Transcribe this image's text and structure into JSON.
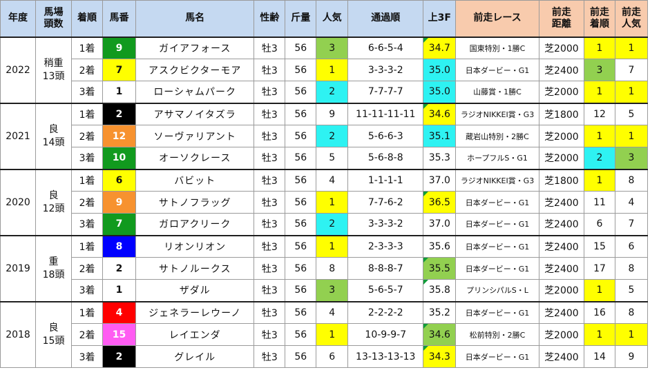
{
  "colors": {
    "header_bg": "#c5d9f1",
    "header_prev_bg": "#f8cbad",
    "highlight_yellow": "#ffff00",
    "highlight_cyan": "#2ef2f2",
    "highlight_green": "#92d050",
    "frame_white": "#ffffff",
    "frame_black": "#000000",
    "frame_red": "#ff0000",
    "frame_blue": "#0000ff",
    "frame_yellow": "#ffff00",
    "frame_green": "#119a1e",
    "frame_orange": "#f7922f",
    "frame_pink": "#ff5cf2"
  },
  "headers": {
    "year": "年度",
    "condition_l1": "馬場",
    "condition_l2": "頭数",
    "finish": "着順",
    "number": "馬番",
    "name": "馬名",
    "sexage": "性齢",
    "weight": "斤量",
    "pop": "人気",
    "passing": "通過順",
    "last3f": "上3F",
    "prev_race": "前走レース",
    "prev_dist_l1": "前走",
    "prev_dist_l2": "距離",
    "prev_finish_l1": "前走",
    "prev_finish_l2": "着順",
    "prev_pop_l1": "前走",
    "prev_pop_l2": "人気"
  },
  "groups": [
    {
      "year": "2022",
      "track": "稍重",
      "field": "13頭",
      "rows": [
        {
          "finish": "1着",
          "number": "9",
          "frame": "green",
          "name": "ガイアフォース",
          "sexage": "牡3",
          "weight": "56",
          "pop": "3",
          "pop_hl": "green",
          "passing": "6-6-5-4",
          "last3f": "34.7",
          "l3f_hl": "yellow",
          "l3f_tri": true,
          "prev_race": "国東特別・1勝C",
          "prev_dist": "芝2000",
          "prev_finish": "1",
          "pf_hl": "yellow",
          "prev_pop": "1",
          "pp_hl": "yellow"
        },
        {
          "finish": "2着",
          "number": "7",
          "frame": "yellow",
          "name": "アスクビクターモア",
          "sexage": "牡3",
          "weight": "56",
          "pop": "1",
          "pop_hl": "yellow",
          "passing": "3-3-3-2",
          "last3f": "35.0",
          "l3f_hl": "cyan",
          "l3f_tri": false,
          "prev_race": "日本ダービー・G1",
          "prev_dist": "芝2400",
          "prev_finish": "3",
          "pf_hl": "green",
          "prev_pop": "7",
          "pp_hl": ""
        },
        {
          "finish": "3着",
          "number": "1",
          "frame": "white",
          "name": "ローシャムパーク",
          "sexage": "牡3",
          "weight": "56",
          "pop": "2",
          "pop_hl": "cyan",
          "passing": "7-7-7-7",
          "last3f": "35.0",
          "l3f_hl": "cyan",
          "l3f_tri": false,
          "prev_race": "山藤賞・1勝C",
          "prev_dist": "芝2000",
          "prev_finish": "1",
          "pf_hl": "yellow",
          "prev_pop": "1",
          "pp_hl": "yellow"
        }
      ]
    },
    {
      "year": "2021",
      "track": "良",
      "field": "14頭",
      "rows": [
        {
          "finish": "1着",
          "number": "2",
          "frame": "black",
          "name": "アサマノイタズラ",
          "sexage": "牡3",
          "weight": "56",
          "pop": "9",
          "pop_hl": "",
          "passing": "11-11-11-11",
          "last3f": "34.6",
          "l3f_hl": "yellow",
          "l3f_tri": true,
          "prev_race": "ラジオNIKKEI賞・G3",
          "prev_dist": "芝1800",
          "prev_finish": "12",
          "pf_hl": "",
          "prev_pop": "5",
          "pp_hl": ""
        },
        {
          "finish": "2着",
          "number": "12",
          "frame": "orange",
          "name": "ソーヴァリアント",
          "sexage": "牡3",
          "weight": "56",
          "pop": "2",
          "pop_hl": "cyan",
          "passing": "5-6-6-3",
          "last3f": "35.1",
          "l3f_hl": "cyan",
          "l3f_tri": false,
          "prev_race": "蔵岩山特別・2勝C",
          "prev_dist": "芝2000",
          "prev_finish": "1",
          "pf_hl": "yellow",
          "prev_pop": "1",
          "pp_hl": "yellow"
        },
        {
          "finish": "3着",
          "number": "10",
          "frame": "green",
          "name": "オーソクレース",
          "sexage": "牡3",
          "weight": "56",
          "pop": "5",
          "pop_hl": "",
          "passing": "5-6-8-8",
          "last3f": "35.3",
          "l3f_hl": "",
          "l3f_tri": false,
          "prev_race": "ホープフルS・G1",
          "prev_dist": "芝2000",
          "prev_finish": "2",
          "pf_hl": "cyan",
          "prev_pop": "3",
          "pp_hl": "lgreen"
        }
      ]
    },
    {
      "year": "2020",
      "track": "良",
      "field": "12頭",
      "rows": [
        {
          "finish": "1着",
          "number": "6",
          "frame": "yellow",
          "name": "バビット",
          "sexage": "牡3",
          "weight": "56",
          "pop": "4",
          "pop_hl": "",
          "passing": "1-1-1-1",
          "last3f": "37.0",
          "l3f_hl": "",
          "l3f_tri": false,
          "prev_race": "ラジオNIKKEI賞・G3",
          "prev_dist": "芝1800",
          "prev_finish": "1",
          "pf_hl": "yellow",
          "prev_pop": "8",
          "pp_hl": ""
        },
        {
          "finish": "2着",
          "number": "9",
          "frame": "orange",
          "name": "サトノフラッグ",
          "sexage": "牡3",
          "weight": "56",
          "pop": "1",
          "pop_hl": "yellow",
          "passing": "7-7-6-2",
          "last3f": "36.5",
          "l3f_hl": "yellow",
          "l3f_tri": true,
          "prev_race": "日本ダービー・G1",
          "prev_dist": "芝2400",
          "prev_finish": "11",
          "pf_hl": "",
          "prev_pop": "4",
          "pp_hl": ""
        },
        {
          "finish": "3着",
          "number": "7",
          "frame": "green",
          "name": "ガロアクリーク",
          "sexage": "牡3",
          "weight": "56",
          "pop": "2",
          "pop_hl": "cyan",
          "passing": "3-3-3-2",
          "last3f": "37.0",
          "l3f_hl": "",
          "l3f_tri": false,
          "prev_race": "日本ダービー・G1",
          "prev_dist": "芝2400",
          "prev_finish": "6",
          "pf_hl": "",
          "prev_pop": "7",
          "pp_hl": ""
        }
      ]
    },
    {
      "year": "2019",
      "track": "重",
      "field": "18頭",
      "rows": [
        {
          "finish": "1着",
          "number": "8",
          "frame": "blue",
          "name": "リオンリオン",
          "sexage": "牡3",
          "weight": "56",
          "pop": "1",
          "pop_hl": "yellow",
          "passing": "2-3-3-3",
          "last3f": "35.6",
          "l3f_hl": "",
          "l3f_tri": false,
          "prev_race": "日本ダービー・G1",
          "prev_dist": "芝2400",
          "prev_finish": "15",
          "pf_hl": "",
          "prev_pop": "6",
          "pp_hl": ""
        },
        {
          "finish": "2着",
          "number": "2",
          "frame": "white",
          "name": "サトノルークス",
          "sexage": "牡3",
          "weight": "56",
          "pop": "8",
          "pop_hl": "",
          "passing": "8-8-8-7",
          "last3f": "35.5",
          "l3f_hl": "green",
          "l3f_tri": true,
          "prev_race": "日本ダービー・G1",
          "prev_dist": "芝2400",
          "prev_finish": "17",
          "pf_hl": "",
          "prev_pop": "8",
          "pp_hl": ""
        },
        {
          "finish": "3着",
          "number": "1",
          "frame": "white",
          "name": "ザダル",
          "sexage": "牡3",
          "weight": "56",
          "pop": "3",
          "pop_hl": "green",
          "passing": "5-6-5-7",
          "last3f": "35.8",
          "l3f_hl": "",
          "l3f_tri": true,
          "prev_race": "プリンシパルS・L",
          "prev_dist": "芝2000",
          "prev_finish": "1",
          "pf_hl": "yellow",
          "prev_pop": "5",
          "pp_hl": ""
        }
      ]
    },
    {
      "year": "2018",
      "track": "良",
      "field": "15頭",
      "rows": [
        {
          "finish": "1着",
          "number": "4",
          "frame": "red",
          "name": "ジェネラーレウーノ",
          "sexage": "牡3",
          "weight": "56",
          "pop": "4",
          "pop_hl": "",
          "passing": "2-2-2-2",
          "last3f": "35.2",
          "l3f_hl": "",
          "l3f_tri": false,
          "prev_race": "日本ダービー・G1",
          "prev_dist": "芝2400",
          "prev_finish": "16",
          "pf_hl": "",
          "prev_pop": "8",
          "pp_hl": ""
        },
        {
          "finish": "2着",
          "number": "15",
          "frame": "pink",
          "name": "レイエンダ",
          "sexage": "牡3",
          "weight": "56",
          "pop": "1",
          "pop_hl": "yellow",
          "passing": "10-9-9-7",
          "last3f": "34.6",
          "l3f_hl": "green",
          "l3f_tri": true,
          "prev_race": "松前特別・2勝C",
          "prev_dist": "芝2000",
          "prev_finish": "1",
          "pf_hl": "yellow",
          "prev_pop": "1",
          "pp_hl": "yellow"
        },
        {
          "finish": "3着",
          "number": "2",
          "frame": "black",
          "name": "グレイル",
          "sexage": "牡3",
          "weight": "56",
          "pop": "6",
          "pop_hl": "",
          "passing": "13-13-13-13",
          "last3f": "34.3",
          "l3f_hl": "yellow",
          "l3f_tri": true,
          "prev_race": "日本ダービー・G1",
          "prev_dist": "芝2400",
          "prev_finish": "14",
          "pf_hl": "",
          "prev_pop": "9",
          "pp_hl": ""
        }
      ]
    }
  ]
}
